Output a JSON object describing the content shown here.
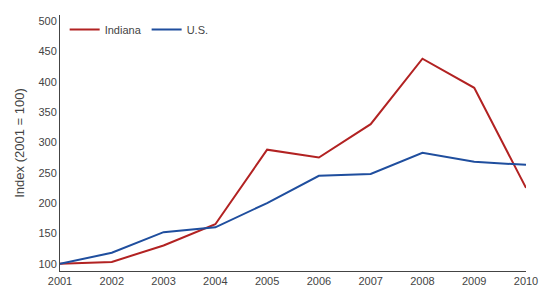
{
  "chart_data": {
    "type": "line",
    "x": [
      2001,
      2002,
      2003,
      2004,
      2005,
      2006,
      2007,
      2008,
      2009,
      2010
    ],
    "series": [
      {
        "name": "Indiana",
        "color": "#b22222",
        "values": [
          100,
          103,
          130,
          165,
          288,
          275,
          330,
          438,
          390,
          225
        ]
      },
      {
        "name": "U.S.",
        "color": "#1f4e9e",
        "values": [
          100,
          118,
          152,
          160,
          200,
          245,
          248,
          283,
          268,
          263
        ]
      }
    ],
    "ylabel": "Index (2001 = 100)",
    "xlim": [
      2001,
      2010
    ],
    "ylim": [
      88,
      510
    ],
    "xticks": [
      2001,
      2002,
      2003,
      2004,
      2005,
      2006,
      2007,
      2008,
      2009,
      2010
    ],
    "yticks": [
      100,
      150,
      200,
      250,
      300,
      350,
      400,
      450,
      500
    ],
    "grid": false,
    "legend": "upper left"
  }
}
